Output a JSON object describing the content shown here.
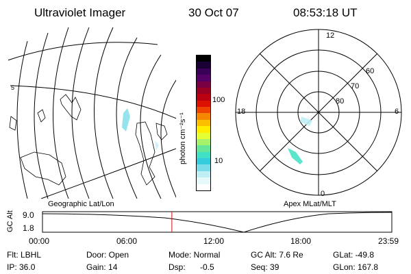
{
  "header": {
    "instrument": "Ultraviolet Imager",
    "date": "30 Oct 07",
    "time": "08:53:18 UT"
  },
  "colorbar": {
    "label": "photon cm⁻²s⁻¹",
    "ticks": [
      "100",
      "10"
    ],
    "colors": [
      "#000000",
      "#1a0033",
      "#3a0055",
      "#550066",
      "#7a0044",
      "#990022",
      "#bb0011",
      "#dd1100",
      "#ee4400",
      "#f58800",
      "#fbbf00",
      "#ffee00",
      "#e6ff33",
      "#a6f26b",
      "#66e699",
      "#40e0c4",
      "#33ccdd",
      "#7adce8",
      "#bfeef4",
      "#e6f8fa",
      "#ffffff"
    ]
  },
  "geo_map": {
    "caption": "Geographic Lat/Lon",
    "edge_tick": "5"
  },
  "polar_map": {
    "caption": "Apex MLat/MLT",
    "mlt_labels": {
      "top": "12",
      "left": "18",
      "right": "6",
      "bottom": "0"
    },
    "lat_labels": [
      "60",
      "70",
      "80"
    ]
  },
  "altitude_plot": {
    "ylabel": "GC Alt",
    "yticks": [
      "9.0",
      "1.8"
    ],
    "xticks": [
      "00:00",
      "06:00",
      "12:00",
      "18:00",
      "23:59"
    ],
    "current_time_hours": 8.888
  },
  "status": {
    "flt": "Flt: LBHL",
    "ip": "IP: 36.0",
    "door": "Door: Open",
    "gain": "Gain: 14",
    "mode": "Mode: Normal",
    "dsp": "Dsp:",
    "dsp_value": "-0.5",
    "gc_alt": "GC Alt: 7.6 Re",
    "seq": "Seq: 39",
    "glat": "GLat: -49.8",
    "glon": "GLon: 167.8"
  }
}
